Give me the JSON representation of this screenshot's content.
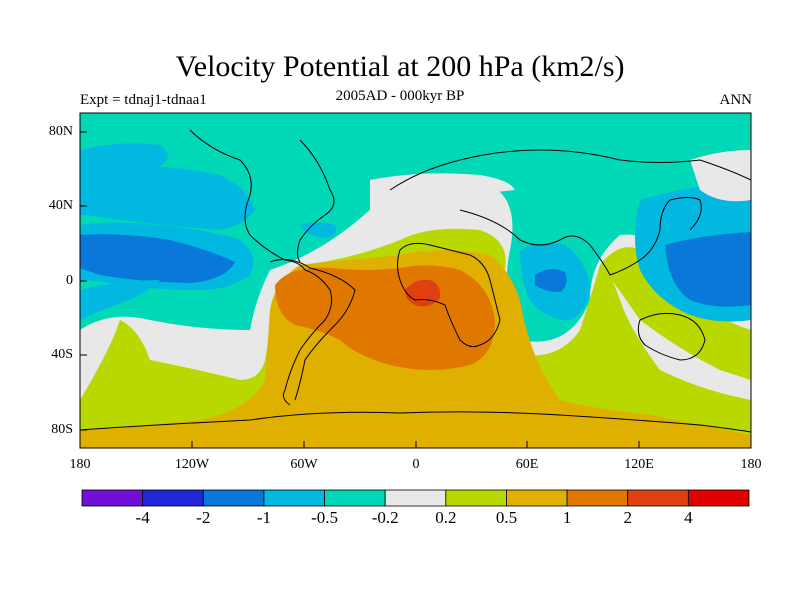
{
  "title": "Velocity Potential at 200 hPa (km2/s)",
  "subtitle": "2005AD - 000kyr BP",
  "experiment": "Expt = tdnaj1-tdnaa1",
  "season": "ANN",
  "y_ticks": [
    "80N",
    "40N",
    "0",
    "40S",
    "80S"
  ],
  "x_ticks": [
    "180",
    "120W",
    "60W",
    "0",
    "60E",
    "120E",
    "180"
  ],
  "colorbar": {
    "colors": [
      "#6f0fd8",
      "#1f28d8",
      "#0a78d8",
      "#00b8e0",
      "#00d8b8",
      "#e8e8e8",
      "#b8d800",
      "#e0b000",
      "#e07800",
      "#e04010",
      "#e00000"
    ],
    "labels": [
      "-4",
      "-2",
      "-1",
      "-0.5",
      "-0.2",
      "0.2",
      "0.5",
      "1",
      "2",
      "4"
    ]
  }
}
